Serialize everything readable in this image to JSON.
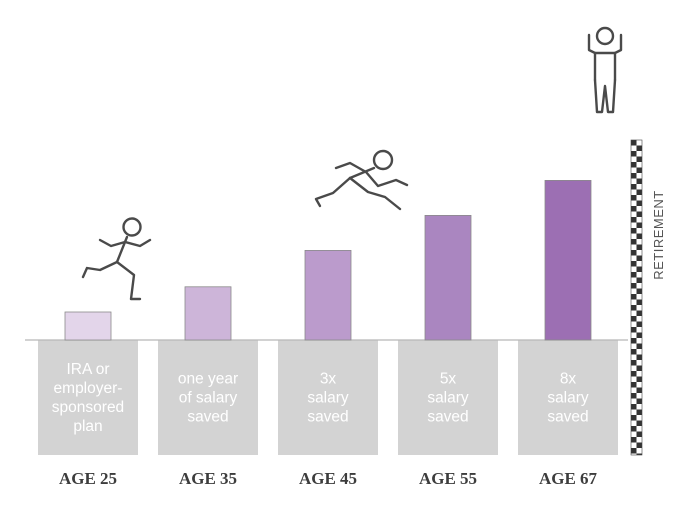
{
  "chart_data": {
    "type": "bar",
    "categories": [
      "AGE 25",
      "AGE 35",
      "AGE 45",
      "AGE 55",
      "AGE 67"
    ],
    "bar_labels": [
      [
        "IRA or",
        "employer-",
        "sponsored",
        "plan"
      ],
      [
        "one year",
        "of salary",
        "saved"
      ],
      [
        "3x",
        "salary",
        "saved"
      ],
      [
        "5x",
        "salary",
        "saved"
      ],
      [
        "8x",
        "salary",
        "saved"
      ]
    ],
    "values": [
      0.5,
      1,
      3,
      5,
      8
    ],
    "relative_heights": [
      1,
      1.9,
      3.2,
      4.45,
      5.7
    ],
    "colors": [
      "#e3d5ea",
      "#cdb5d9",
      "#bb9bcc",
      "#aa86c0",
      "#9c6fb3"
    ],
    "box_color": "#d3d3d3",
    "finish_label": "RETIREMENT",
    "icons": [
      "runner-icon",
      "leaping-runner-icon",
      "celebrating-person-icon"
    ],
    "title": "",
    "xlabel": "",
    "ylabel": ""
  }
}
